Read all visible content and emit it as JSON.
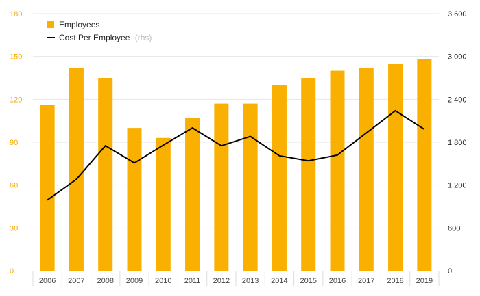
{
  "chart_data": {
    "type": "bar",
    "categories": [
      "2006",
      "2007",
      "2008",
      "2009",
      "2010",
      "2011",
      "2012",
      "2013",
      "2014",
      "2015",
      "2016",
      "2017",
      "2018",
      "2019"
    ],
    "series": [
      {
        "name": "Employees",
        "type": "bar",
        "axis": "left",
        "color": "#f9b000",
        "values": [
          116,
          142,
          135,
          100,
          93,
          107,
          117,
          117,
          130,
          135,
          140,
          142,
          145,
          148
        ]
      },
      {
        "name": "Cost Per Employee",
        "legend_note": "(rhs)",
        "type": "line",
        "axis": "right",
        "color": "#000000",
        "values": [
          990,
          1280,
          1750,
          1510,
          1760,
          2000,
          1750,
          1880,
          1610,
          1540,
          1620,
          1930,
          2240,
          1980
        ]
      }
    ],
    "left_axis": {
      "min": 0,
      "max": 180,
      "ticks": [
        "0",
        "30",
        "60",
        "90",
        "120",
        "150",
        "180"
      ],
      "color": "#f2a900"
    },
    "right_axis": {
      "min": 0,
      "max": 3600,
      "ticks": [
        "0",
        "600",
        "1 200",
        "1 800",
        "2 400",
        "3 000",
        "3 600"
      ]
    },
    "grid": true,
    "legend_position": "top-left"
  }
}
